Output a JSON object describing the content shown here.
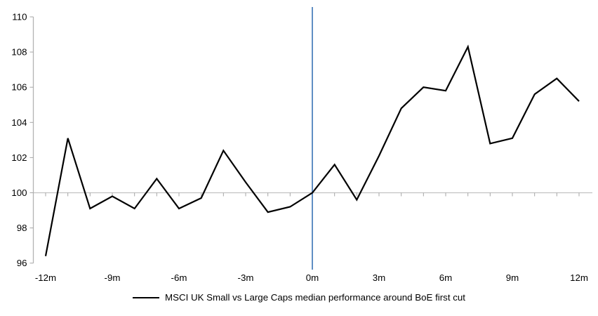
{
  "chart_data": {
    "type": "line",
    "title": "",
    "xlabel": "",
    "ylabel": "",
    "x": [
      -12,
      -11,
      -10,
      -9,
      -8,
      -7,
      -6,
      -5,
      -4,
      -3,
      -2,
      -1,
      0,
      1,
      2,
      3,
      4,
      5,
      6,
      7,
      8,
      9,
      10,
      11,
      12
    ],
    "series": [
      {
        "name": "MSCI UK Small vs Large Caps median performance around BoE first cut",
        "color": "#000000",
        "values": [
          96.4,
          103.1,
          99.1,
          99.8,
          99.1,
          100.8,
          99.1,
          99.7,
          102.4,
          100.6,
          98.9,
          99.2,
          100.0,
          101.6,
          99.6,
          102.1,
          104.8,
          106.0,
          105.8,
          108.3,
          102.8,
          103.1,
          105.6,
          106.5,
          105.2
        ]
      }
    ],
    "xticks": [
      {
        "value": -12,
        "label": "-12m"
      },
      {
        "value": -9,
        "label": "-9m"
      },
      {
        "value": -6,
        "label": "-6m"
      },
      {
        "value": -3,
        "label": "-3m"
      },
      {
        "value": 0,
        "label": "0m"
      },
      {
        "value": 3,
        "label": "3m"
      },
      {
        "value": 6,
        "label": "6m"
      },
      {
        "value": 9,
        "label": "9m"
      },
      {
        "value": 12,
        "label": "12m"
      }
    ],
    "yticks": [
      96,
      98,
      100,
      102,
      104,
      106,
      108,
      110
    ],
    "ylim": [
      96,
      110
    ],
    "xlim": [
      -12,
      12
    ],
    "baseline_value": 100,
    "event_line_x": 0,
    "minor_x_tick_every": 1,
    "grid": "off",
    "legend_position": "bottom",
    "colors": {
      "series_line": "#000000",
      "event_line": "#4f81bd",
      "axis_line": "#b3b3b3",
      "baseline_line": "#c2c2c2",
      "tick_mark": "#a6a6a6",
      "label_text": "#000000"
    }
  }
}
